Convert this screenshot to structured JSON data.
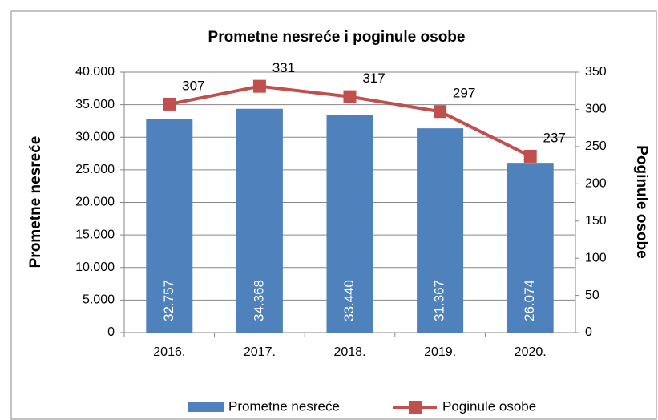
{
  "chart_data": {
    "type": "bar",
    "title": "Prometne nesreće i poginule osobe",
    "categories": [
      "2016.",
      "2017.",
      "2018.",
      "2019.",
      "2020."
    ],
    "series": [
      {
        "name": "Prometne nesreće",
        "color": "#4f81bd",
        "values": [
          32757,
          34368,
          33440,
          31367,
          26074
        ],
        "value_labels": [
          "32.757",
          "34.368",
          "33.440",
          "31.367",
          "26.074"
        ]
      },
      {
        "name": "Poginule osobe",
        "color": "#c0504d",
        "type": "line",
        "axis": "y2",
        "values": [
          307,
          331,
          317,
          297,
          237
        ]
      }
    ],
    "ylabel": "Prometne nesreće",
    "y2label": "Poginule osobe",
    "ylim": [
      0,
      40000
    ],
    "yticks": [
      0,
      {
        "value": 5000,
        "label": "5.000"
      },
      {
        "value": 10000,
        "label": "10.000"
      },
      {
        "value": 15000,
        "label": "15.000"
      },
      {
        "value": 20000,
        "label": "20.000"
      },
      {
        "value": 25000,
        "label": "25.000"
      },
      {
        "value": 30000,
        "label": "30.000"
      },
      {
        "value": 35000,
        "label": "35.000"
      },
      {
        "value": 40000,
        "label": "40.000"
      }
    ],
    "y2lim": [
      0,
      350
    ],
    "y2ticks": [
      0,
      50,
      100,
      150,
      200,
      250,
      300,
      350
    ],
    "grid": true,
    "legend": "bottom"
  }
}
